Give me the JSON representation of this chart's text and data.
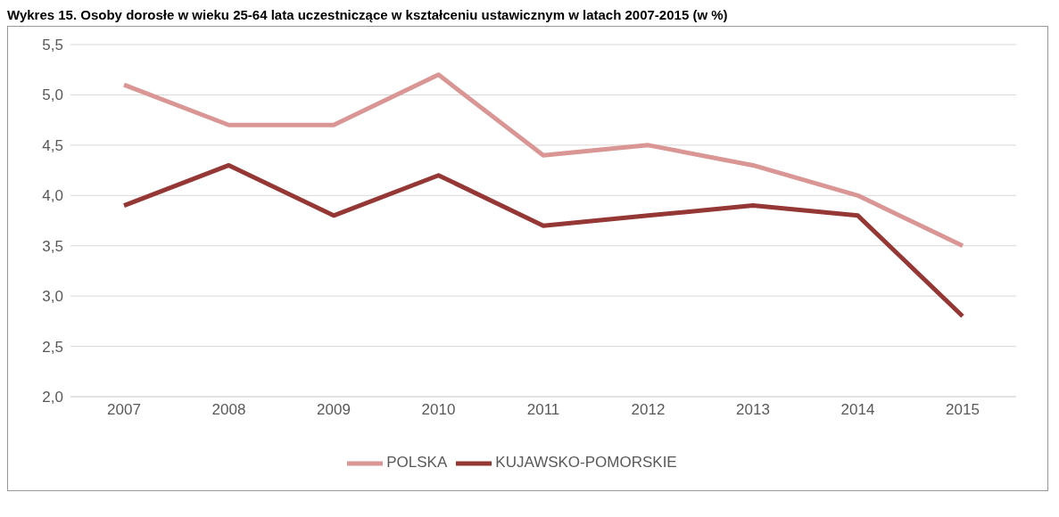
{
  "chart_data": {
    "type": "line",
    "title": "Wykres 15. Osoby dorosłe w wieku 25-64 lata uczestniczące w kształceniu ustawicznym w latach 2007-2015 (w %)",
    "categories": [
      "2007",
      "2008",
      "2009",
      "2010",
      "2011",
      "2012",
      "2013",
      "2014",
      "2015"
    ],
    "series": [
      {
        "name": "POLSKA",
        "color": "#d99694",
        "values": [
          5.1,
          4.7,
          4.7,
          5.2,
          4.4,
          4.5,
          4.3,
          4.0,
          3.5
        ]
      },
      {
        "name": "KUJAWSKO-POMORSKIE",
        "color": "#953735",
        "values": [
          3.9,
          4.3,
          3.8,
          4.2,
          3.7,
          3.8,
          3.9,
          3.8,
          2.8
        ]
      }
    ],
    "ylim": [
      2,
      5.5
    ],
    "yticks": [
      {
        "value": 2,
        "label": "2,0"
      },
      {
        "value": 2.5,
        "label": "2,5"
      },
      {
        "value": 3,
        "label": "3,0"
      },
      {
        "value": 3.5,
        "label": "3,5"
      },
      {
        "value": 4,
        "label": "4,0"
      },
      {
        "value": 4.5,
        "label": "4,5"
      },
      {
        "value": 5,
        "label": "5,0"
      },
      {
        "value": 5.5,
        "label": "5,5"
      }
    ],
    "grid": "y",
    "legend": "bottom",
    "marker": "none",
    "line_style": "solid"
  }
}
